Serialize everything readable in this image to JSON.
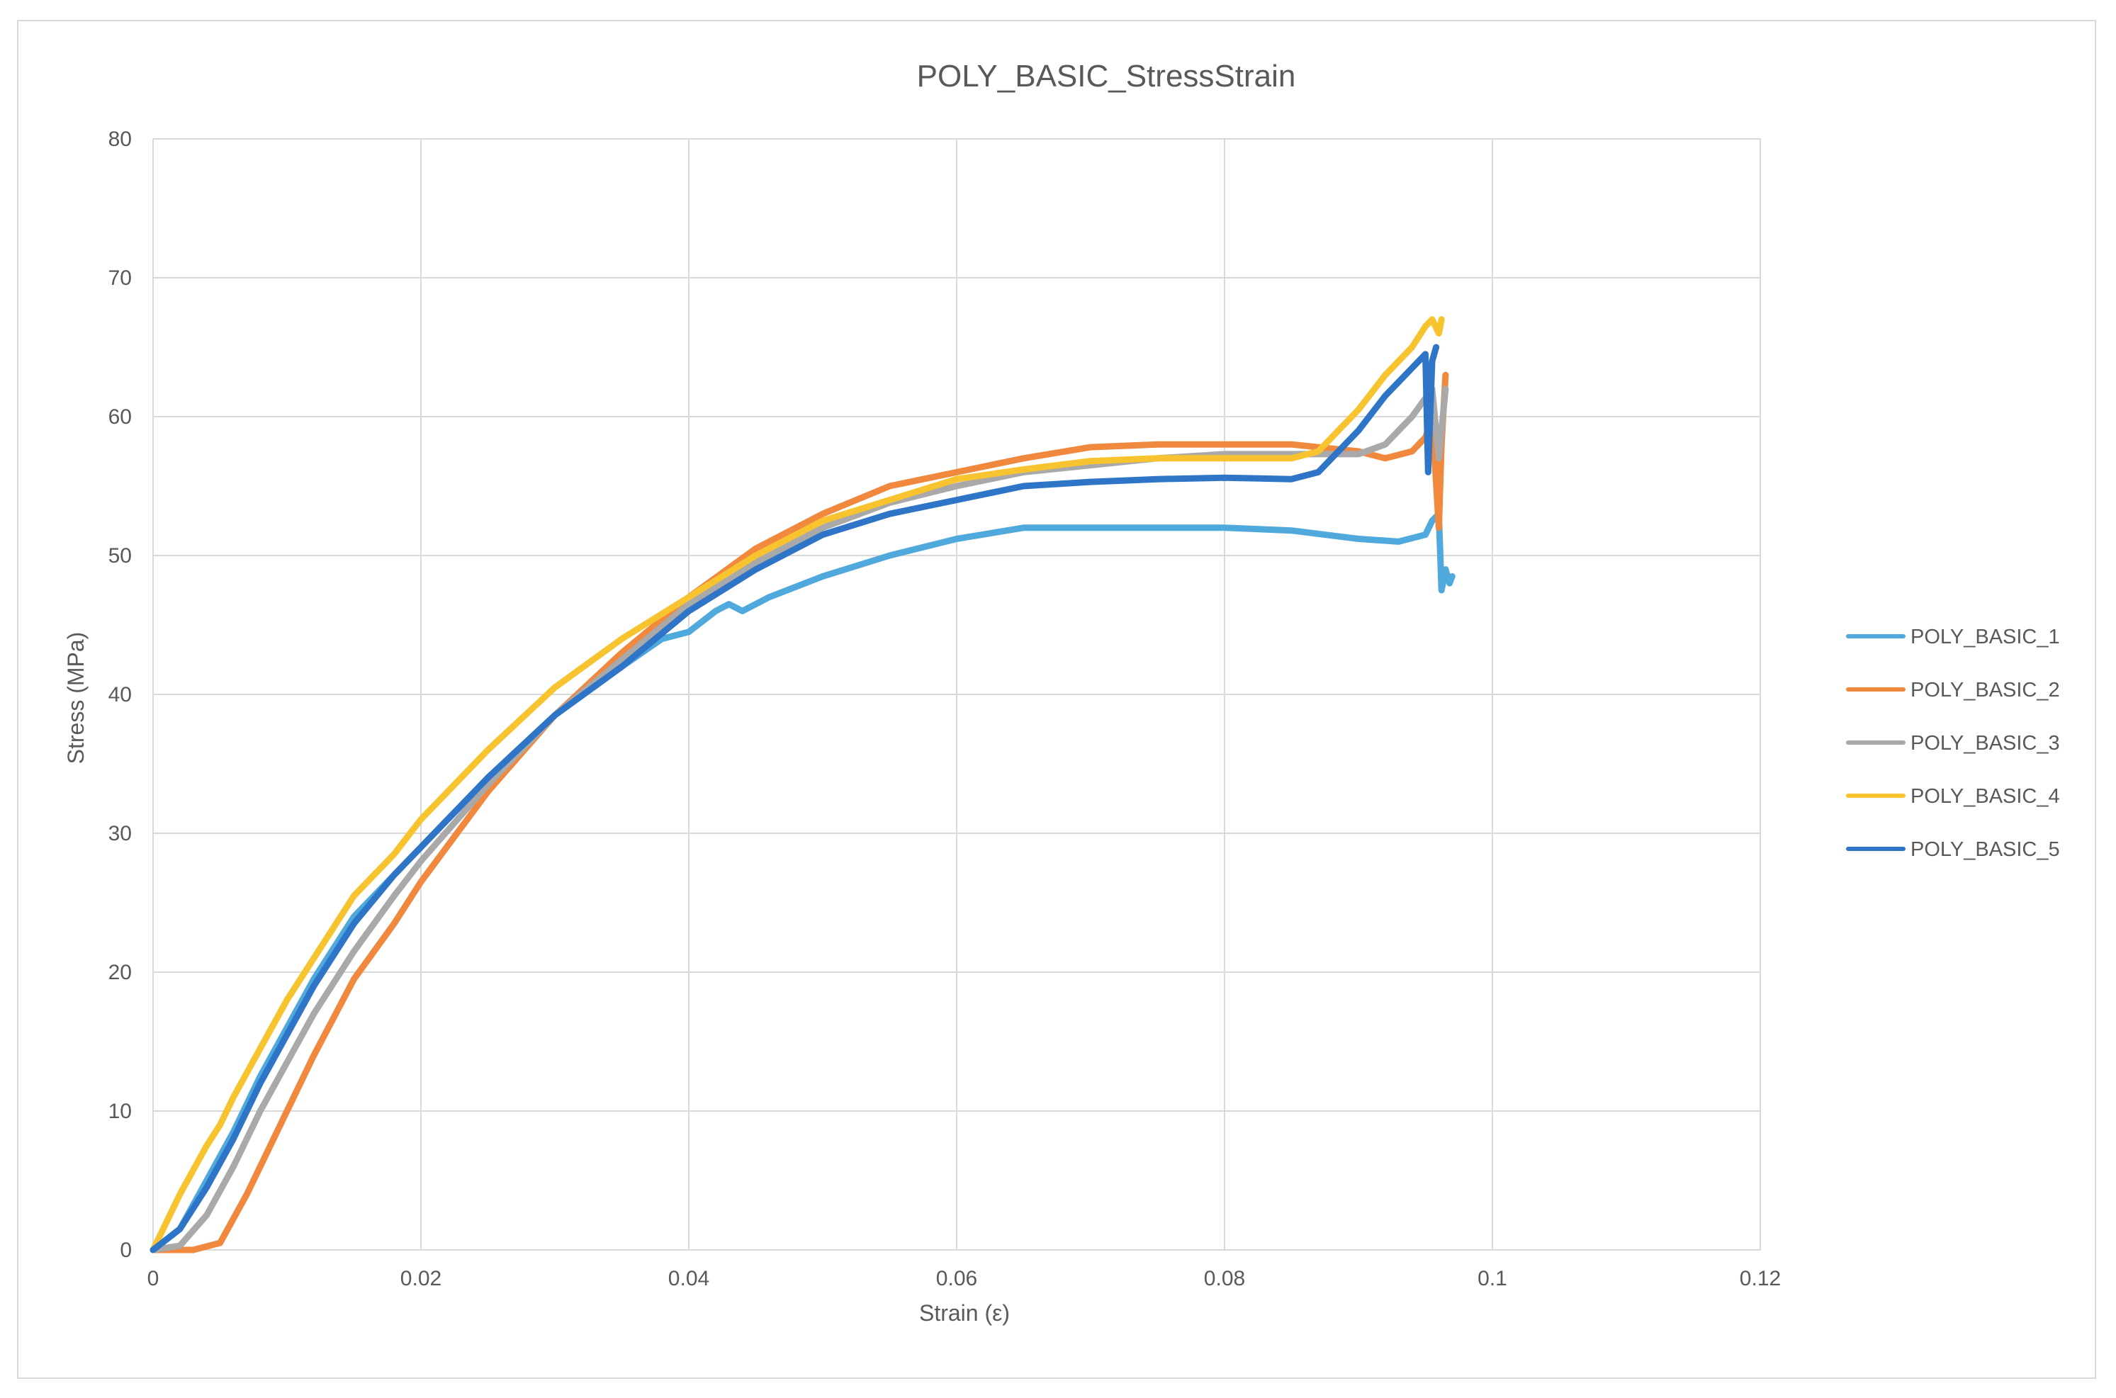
{
  "chart_data": {
    "type": "line",
    "title": "POLY_BASIC_StressStrain",
    "xlabel": "Strain (ε)",
    "ylabel": "Stress (MPa)",
    "xlim": [
      0,
      0.12
    ],
    "ylim": [
      0,
      80
    ],
    "x_ticks": [
      0,
      0.02,
      0.04,
      0.06,
      0.08,
      0.1,
      0.12
    ],
    "x_tick_labels": [
      "0",
      "0.02",
      "0.04",
      "0.06",
      "0.08",
      "0.1",
      "0.12"
    ],
    "y_ticks": [
      0,
      10,
      20,
      30,
      40,
      50,
      60,
      70,
      80
    ],
    "y_tick_labels": [
      "0",
      "10",
      "20",
      "30",
      "40",
      "50",
      "60",
      "70",
      "80"
    ],
    "grid": true,
    "legend_position": "right",
    "series": [
      {
        "name": "POLY_BASIC_1",
        "color": "#4fa9dc",
        "x": [
          0,
          0.002,
          0.004,
          0.006,
          0.008,
          0.01,
          0.012,
          0.015,
          0.018,
          0.02,
          0.025,
          0.03,
          0.035,
          0.038,
          0.04,
          0.042,
          0.043,
          0.044,
          0.046,
          0.05,
          0.055,
          0.06,
          0.065,
          0.07,
          0.075,
          0.08,
          0.085,
          0.09,
          0.093,
          0.095,
          0.0955,
          0.096,
          0.0962,
          0.0965,
          0.0968,
          0.097
        ],
        "y": [
          0,
          1.5,
          5,
          8.5,
          12.5,
          16,
          19.5,
          24,
          27,
          29,
          34,
          38.5,
          42,
          44,
          44.5,
          46,
          46.5,
          46,
          47,
          48.5,
          50,
          51.2,
          52,
          52,
          52,
          52,
          51.8,
          51.2,
          51,
          51.5,
          52.5,
          53,
          47.5,
          49,
          48,
          48.5
        ]
      },
      {
        "name": "POLY_BASIC_2",
        "color": "#f0883e",
        "x": [
          0,
          0.003,
          0.005,
          0.007,
          0.01,
          0.012,
          0.015,
          0.018,
          0.02,
          0.025,
          0.03,
          0.035,
          0.04,
          0.045,
          0.05,
          0.055,
          0.06,
          0.065,
          0.07,
          0.075,
          0.08,
          0.085,
          0.09,
          0.092,
          0.094,
          0.095,
          0.0955,
          0.096,
          0.0962,
          0.0965
        ],
        "y": [
          0,
          0,
          0.5,
          4,
          10,
          14,
          19.5,
          23.5,
          26.5,
          33,
          38.5,
          43,
          47,
          50.5,
          53,
          55,
          56,
          57,
          57.8,
          58,
          58,
          58,
          57.5,
          57,
          57.5,
          58.5,
          60,
          52,
          58,
          63
        ]
      },
      {
        "name": "POLY_BASIC_3",
        "color": "#a9a9a9",
        "x": [
          0,
          0.002,
          0.004,
          0.006,
          0.008,
          0.01,
          0.012,
          0.015,
          0.018,
          0.02,
          0.025,
          0.03,
          0.035,
          0.04,
          0.045,
          0.05,
          0.055,
          0.06,
          0.065,
          0.07,
          0.075,
          0.08,
          0.085,
          0.09,
          0.092,
          0.094,
          0.0955,
          0.096,
          0.0962,
          0.0965
        ],
        "y": [
          0,
          0.3,
          2.5,
          6,
          10,
          13.5,
          17,
          21.5,
          25.5,
          28,
          33.5,
          38.5,
          42.5,
          46.5,
          49.5,
          52,
          53.8,
          55,
          56,
          56.5,
          57,
          57.3,
          57.3,
          57.3,
          58,
          60,
          62,
          57,
          59,
          62
        ]
      },
      {
        "name": "POLY_BASIC_4",
        "color": "#f7c32e",
        "x": [
          0,
          0.002,
          0.004,
          0.005,
          0.006,
          0.008,
          0.01,
          0.012,
          0.015,
          0.018,
          0.02,
          0.025,
          0.03,
          0.035,
          0.04,
          0.045,
          0.05,
          0.055,
          0.06,
          0.065,
          0.07,
          0.075,
          0.08,
          0.085,
          0.087,
          0.09,
          0.092,
          0.094,
          0.095,
          0.0955,
          0.096,
          0.0962
        ],
        "y": [
          0,
          4,
          7.5,
          9,
          11,
          14.5,
          18,
          21,
          25.5,
          28.5,
          31,
          36,
          40.5,
          44,
          47,
          50,
          52.5,
          54,
          55.5,
          56.2,
          56.8,
          57,
          57,
          57,
          57.5,
          60.5,
          63,
          65,
          66.5,
          67,
          66,
          67
        ]
      },
      {
        "name": "POLY_BASIC_5",
        "color": "#2e75c8",
        "x": [
          0,
          0.002,
          0.004,
          0.006,
          0.008,
          0.01,
          0.012,
          0.015,
          0.018,
          0.02,
          0.025,
          0.03,
          0.035,
          0.04,
          0.045,
          0.05,
          0.055,
          0.06,
          0.065,
          0.07,
          0.075,
          0.08,
          0.085,
          0.087,
          0.09,
          0.092,
          0.094,
          0.095,
          0.0952,
          0.0955,
          0.0958
        ],
        "y": [
          0,
          1.5,
          4.5,
          8,
          12,
          15.5,
          19,
          23.5,
          27,
          29,
          34,
          38.5,
          42,
          46,
          49,
          51.5,
          53,
          54,
          55,
          55.3,
          55.5,
          55.6,
          55.5,
          56,
          59,
          61.5,
          63.5,
          64.5,
          56,
          64,
          65
        ]
      }
    ]
  }
}
